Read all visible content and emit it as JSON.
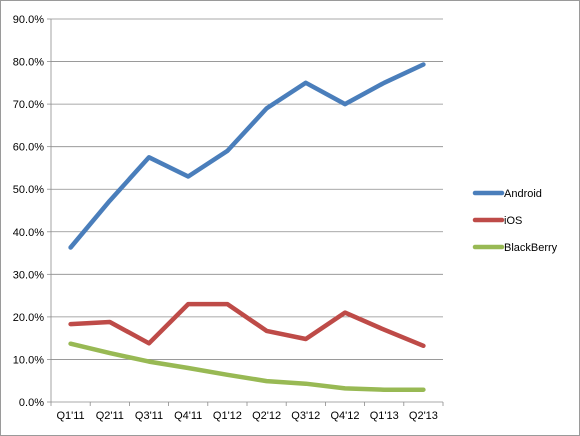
{
  "chart_data": {
    "type": "line",
    "title": "",
    "xlabel": "",
    "ylabel": "",
    "categories": [
      "Q1'11",
      "Q2'11",
      "Q3'11",
      "Q4'11",
      "Q1'12",
      "Q2'12",
      "Q3'12",
      "Q4'12",
      "Q1'13",
      "Q2'13"
    ],
    "ylim": [
      0,
      90
    ],
    "yticks": [
      0,
      10,
      20,
      30,
      40,
      50,
      60,
      70,
      80,
      90
    ],
    "ytick_labels": [
      "0.0%",
      "10.0%",
      "20.0%",
      "30.0%",
      "40.0%",
      "50.0%",
      "60.0%",
      "70.0%",
      "80.0%",
      "90.0%"
    ],
    "grid": "horizontal",
    "legend_position": "right",
    "series": [
      {
        "name": "Android",
        "color": "#4a7ebb",
        "values": [
          36.3,
          47.3,
          57.5,
          53.0,
          59.0,
          69.0,
          75.0,
          70.0,
          75.0,
          79.3
        ]
      },
      {
        "name": "iOS",
        "color": "#be4b48",
        "values": [
          18.3,
          18.8,
          13.8,
          23.0,
          23.0,
          16.7,
          14.8,
          21.0,
          17.0,
          13.2
        ]
      },
      {
        "name": "BlackBerry",
        "color": "#98b954",
        "values": [
          13.7,
          11.5,
          9.5,
          8.0,
          6.4,
          4.9,
          4.3,
          3.2,
          2.9,
          2.9
        ]
      }
    ]
  }
}
